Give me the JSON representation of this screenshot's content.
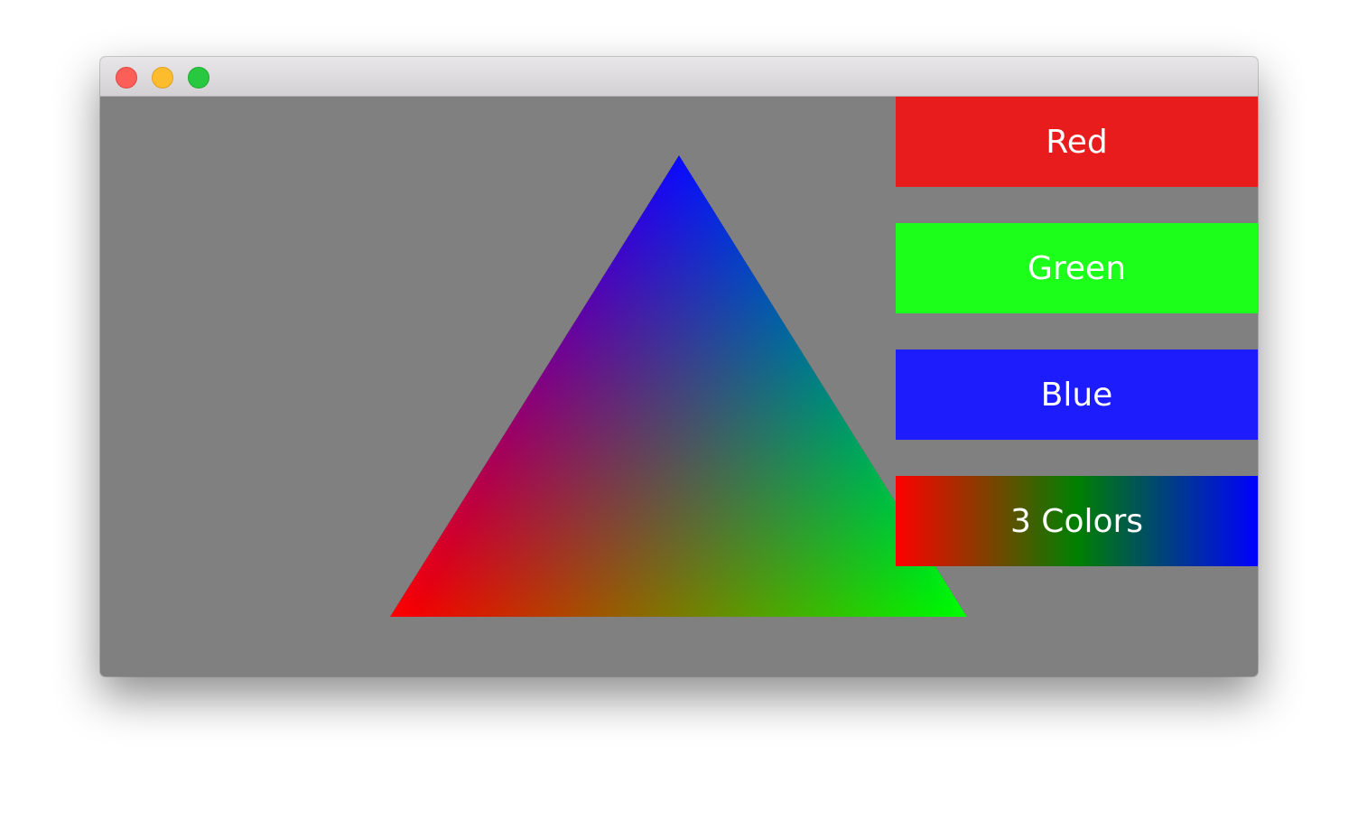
{
  "window": {
    "background": "#808080"
  },
  "triangle": {
    "colors": {
      "top": "#0000ff",
      "bottom_left": "#ff0000",
      "bottom_right": "#00ff00"
    }
  },
  "buttons": [
    {
      "label": "Red",
      "color": "#e81c1c"
    },
    {
      "label": "Green",
      "color": "#1bff1b"
    },
    {
      "label": "Blue",
      "color": "#1c1cfc"
    },
    {
      "label": "3 Colors",
      "gradient": [
        "#ff0000",
        "#008000",
        "#0000ff"
      ]
    }
  ]
}
